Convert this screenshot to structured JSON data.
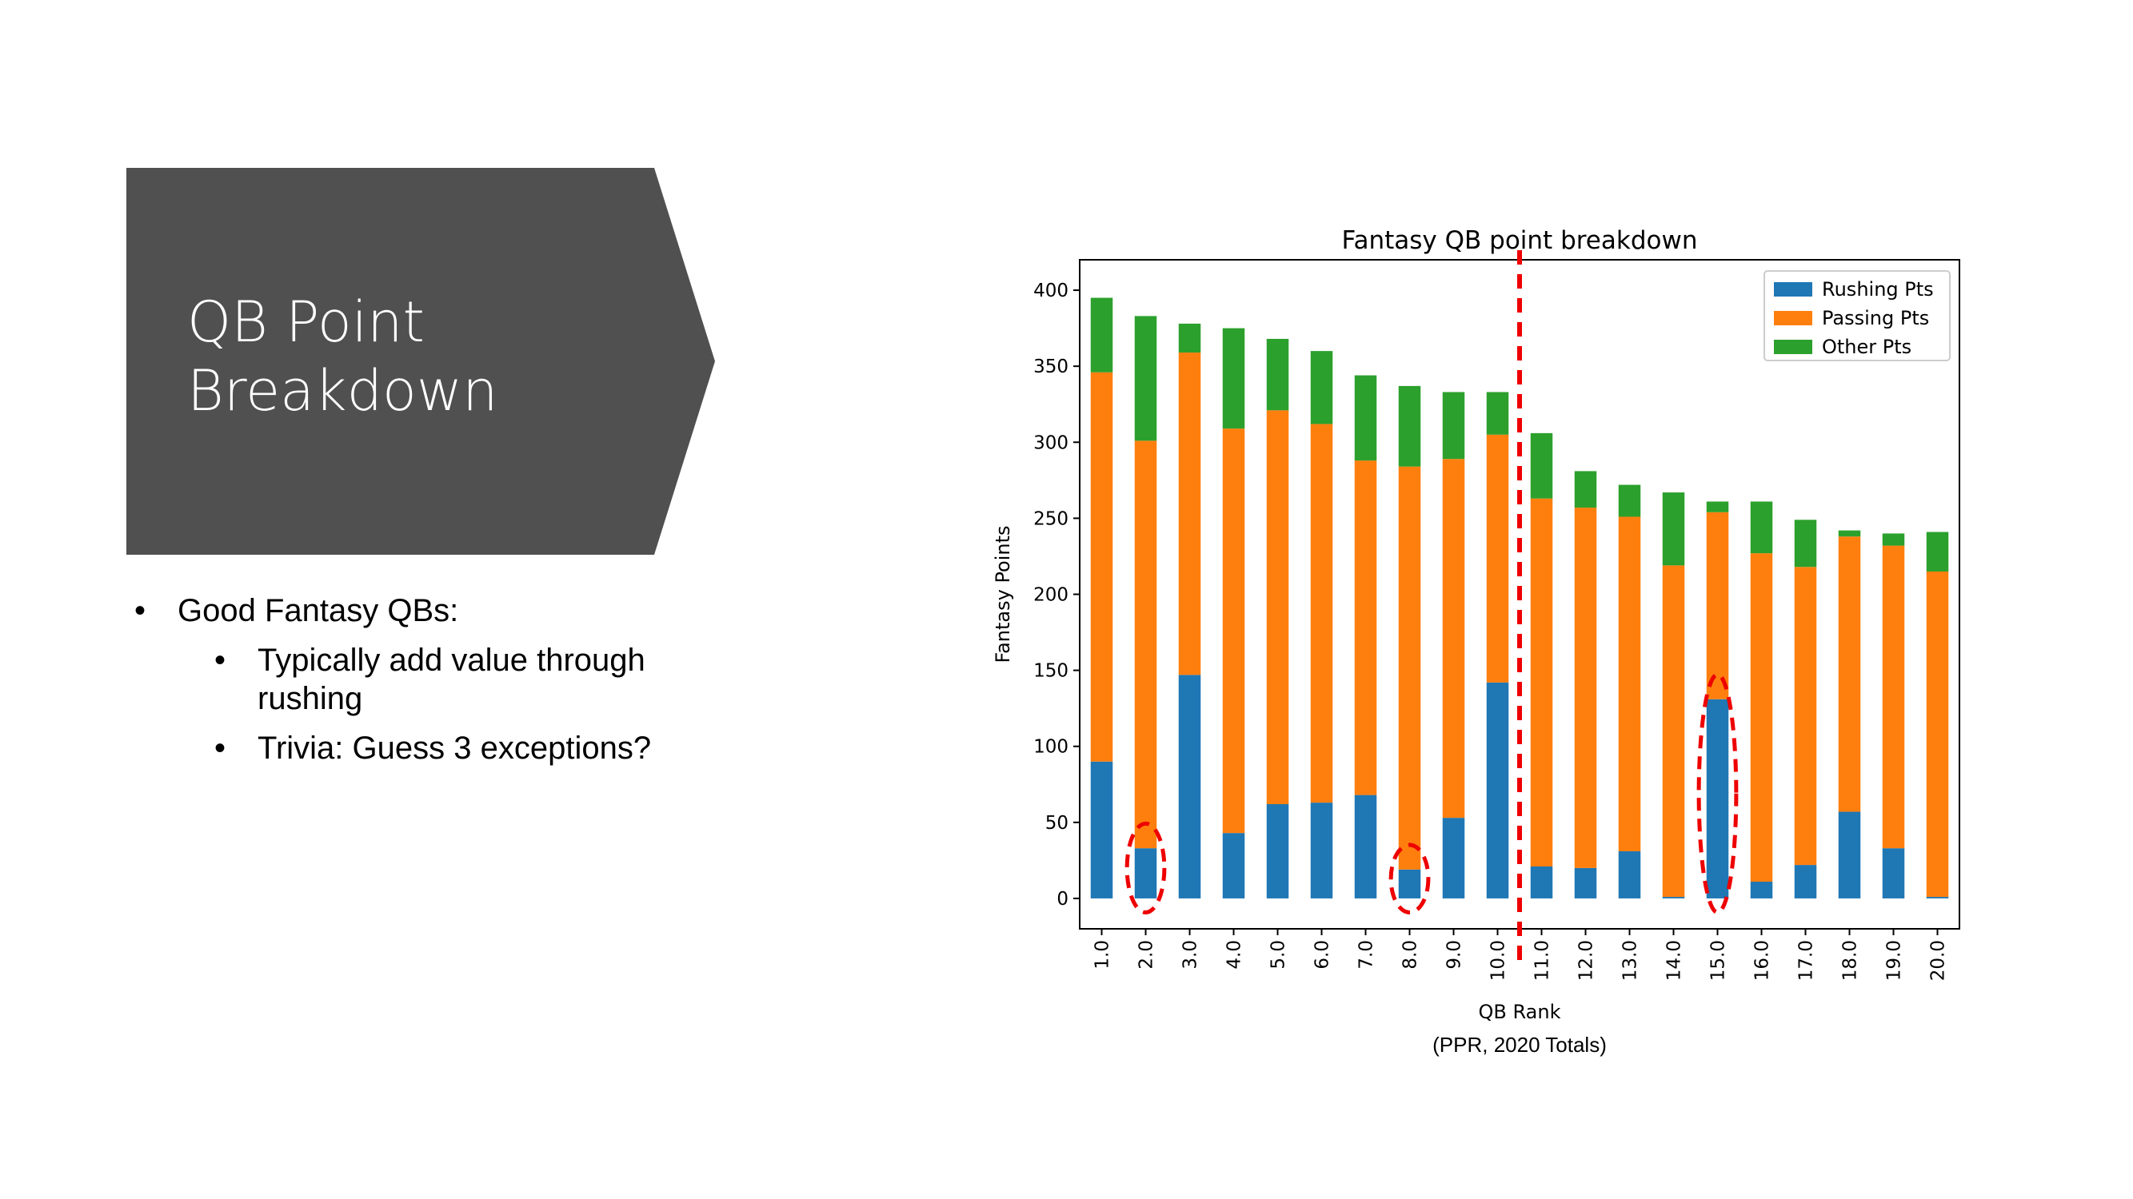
{
  "slide": {
    "title_line1": "QB Point",
    "title_line2": "Breakdown",
    "banner_color": "#505050",
    "bullets": [
      {
        "text": "Good Fantasy QBs:",
        "level": 1
      },
      {
        "text": "Typically add value through",
        "level": 2,
        "continuation": "rushing"
      },
      {
        "text": "Trivia: Guess 3 exceptions?",
        "level": 2
      }
    ],
    "bullet_glyph": "•"
  },
  "chart_data": {
    "type": "bar",
    "stacked": true,
    "title": "Fantasy QB point breakdown",
    "xlabel": "QB Rank",
    "ylabel": "Fantasy Points",
    "caption": "(PPR, 2020 Totals)",
    "ylim": [
      -20,
      420
    ],
    "yticks": [
      0,
      50,
      100,
      150,
      200,
      250,
      300,
      350,
      400
    ],
    "categories": [
      "1.0",
      "2.0",
      "3.0",
      "4.0",
      "5.0",
      "6.0",
      "7.0",
      "8.0",
      "9.0",
      "10.0",
      "11.0",
      "12.0",
      "13.0",
      "14.0",
      "15.0",
      "16.0",
      "17.0",
      "18.0",
      "19.0",
      "20.0"
    ],
    "series": [
      {
        "name": "Rushing Pts",
        "color": "#1f77b4",
        "values": [
          90,
          33,
          147,
          43,
          62,
          63,
          68,
          19,
          53,
          142,
          21,
          20,
          31,
          1,
          131,
          11,
          22,
          57,
          33,
          1
        ]
      },
      {
        "name": "Passing Pts",
        "color": "#ff7f0e",
        "values": [
          256,
          268,
          212,
          266,
          259,
          249,
          220,
          265,
          236,
          163,
          242,
          237,
          220,
          218,
          123,
          216,
          196,
          181,
          199,
          214
        ]
      },
      {
        "name": "Other Pts",
        "color": "#2ca02c",
        "values": [
          49,
          82,
          19,
          66,
          47,
          48,
          56,
          53,
          44,
          28,
          43,
          24,
          21,
          48,
          7,
          34,
          31,
          4,
          8,
          26
        ]
      }
    ],
    "legend_position": "top-right",
    "grid": false,
    "annotations": {
      "divider_after_category": "10.0",
      "divider_color": "#ee0000",
      "circled_categories": [
        "2.0",
        "8.0",
        "15.0"
      ],
      "circle_color": "#ee0000"
    }
  }
}
